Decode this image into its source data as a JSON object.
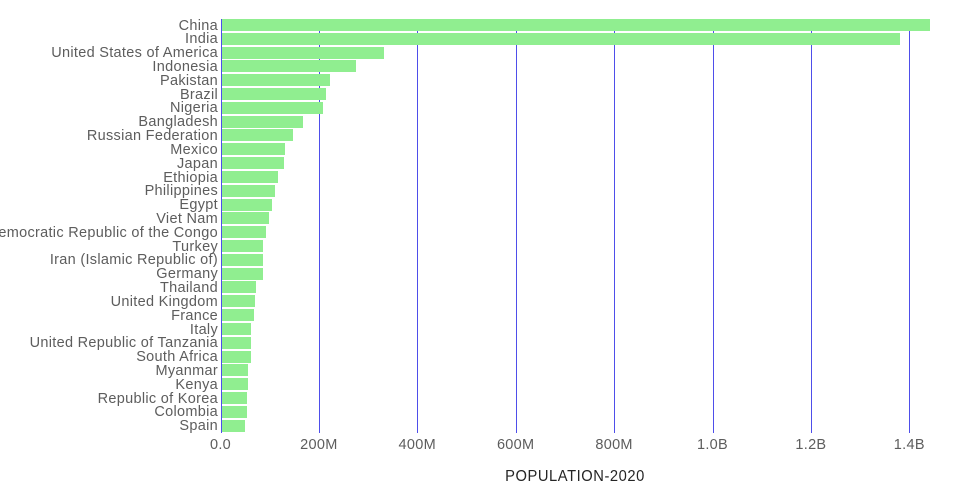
{
  "chart_data": {
    "type": "bar",
    "orientation": "horizontal",
    "title": "",
    "xlabel": "POPULATION-2020",
    "ylabel": "",
    "value_unit": "millions of people",
    "categories": [
      "China",
      "India",
      "United States of America",
      "Indonesia",
      "Pakistan",
      "Brazil",
      "Nigeria",
      "Bangladesh",
      "Russian Federation",
      "Mexico",
      "Japan",
      "Ethiopia",
      "Philippines",
      "Egypt",
      "Viet Nam",
      "Democratic Republic of the Congo",
      "Turkey",
      "Iran (Islamic Republic of)",
      "Germany",
      "Thailand",
      "United Kingdom",
      "France",
      "Italy",
      "United Republic of Tanzania",
      "South Africa",
      "Myanmar",
      "Kenya",
      "Republic of Korea",
      "Colombia",
      "Spain"
    ],
    "values": [
      1439.3,
      1380.0,
      331.0,
      273.5,
      220.9,
      212.6,
      206.1,
      164.7,
      145.9,
      128.9,
      126.5,
      115.0,
      109.6,
      102.3,
      97.3,
      89.6,
      84.3,
      84.0,
      83.8,
      69.8,
      67.9,
      65.3,
      60.5,
      59.7,
      59.3,
      54.4,
      53.8,
      51.3,
      50.9,
      46.8
    ],
    "x_ticks": [
      {
        "label": "0.0",
        "value": 0
      },
      {
        "label": "200M",
        "value": 200
      },
      {
        "label": "400M",
        "value": 400
      },
      {
        "label": "600M",
        "value": 600
      },
      {
        "label": "800M",
        "value": 800
      },
      {
        "label": "1.0B",
        "value": 1000
      },
      {
        "label": "1.2B",
        "value": 1200
      },
      {
        "label": "1.4B",
        "value": 1400
      }
    ],
    "xlim": [
      0,
      1503
    ],
    "grid": true,
    "legend": "none",
    "colors": {
      "bar": "#90ee90",
      "gridline": "#3b3be8",
      "category_label": "#5d5d5d",
      "tick_label": "#5d5d5d",
      "axis_title": "#252525",
      "background": "#ffffff"
    }
  }
}
